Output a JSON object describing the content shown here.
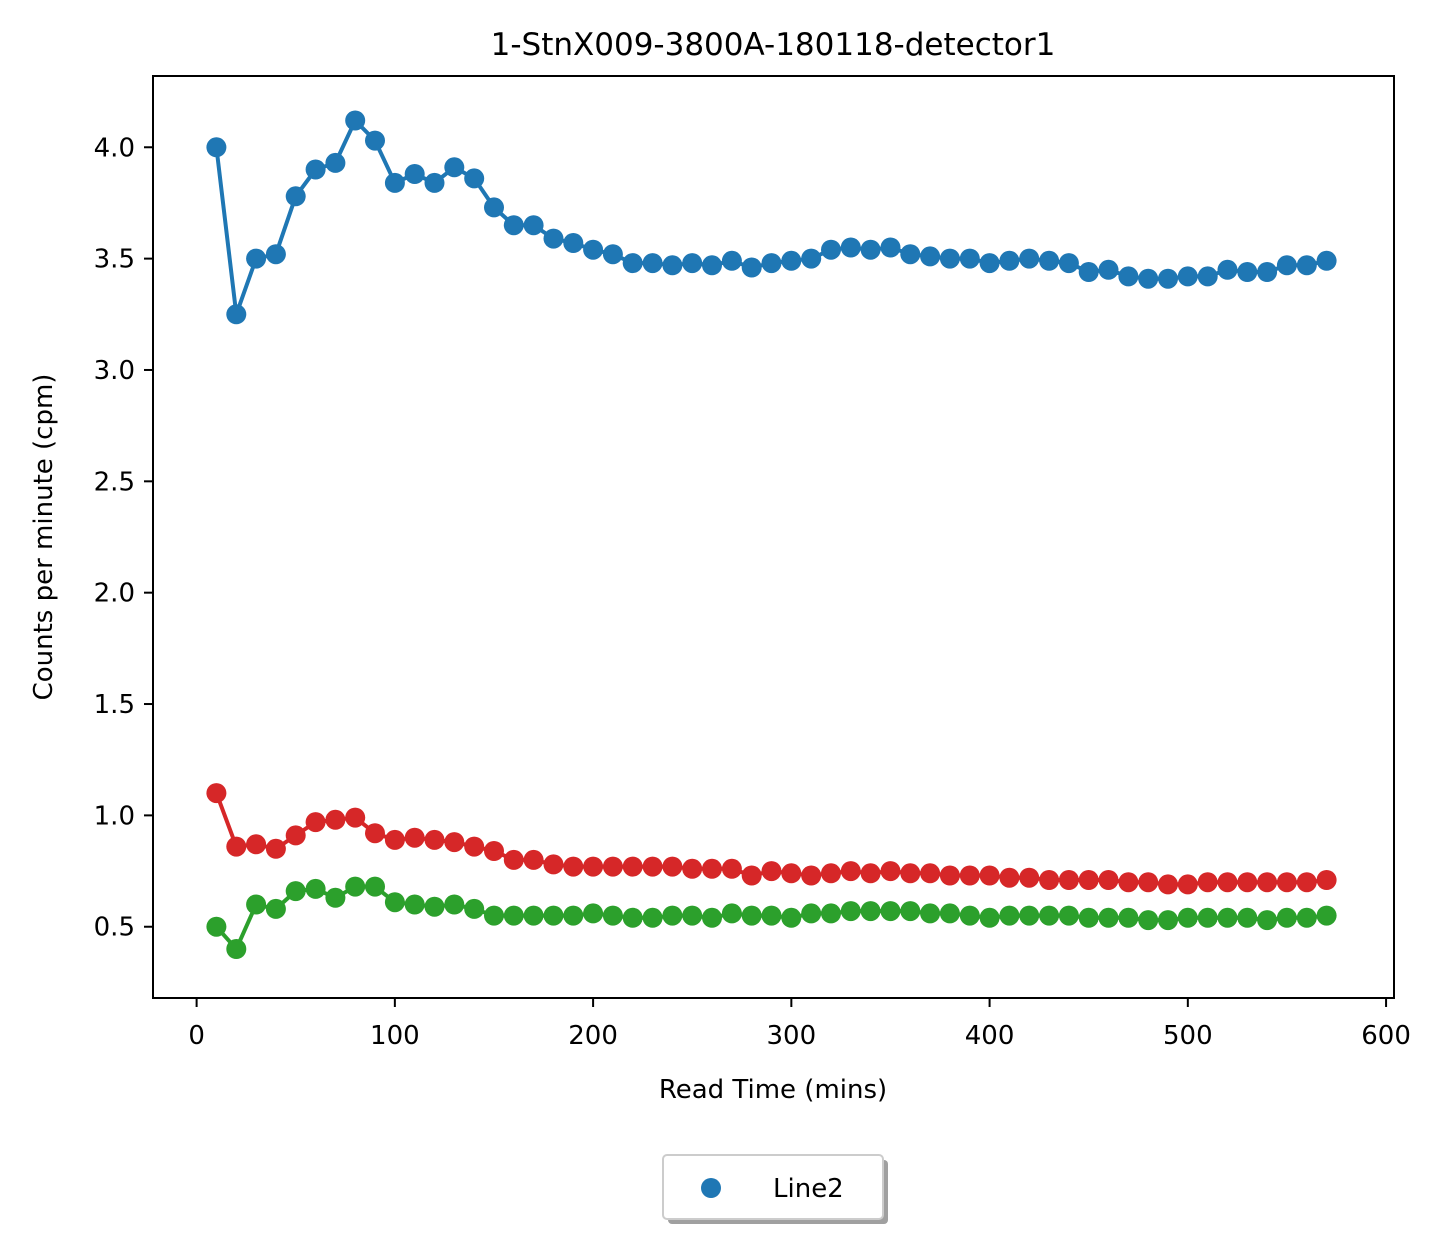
{
  "chart_data": {
    "type": "line",
    "title": "1-StnX009-3800A-180118-detector1",
    "xlabel": "Read Time (mins)",
    "ylabel": "Counts per minute (cpm)",
    "xlim": [
      -22,
      604
    ],
    "ylim": [
      0.18,
      4.32
    ],
    "xticks": [
      0,
      100,
      200,
      300,
      400,
      500,
      600
    ],
    "yticks": [
      0.5,
      1.0,
      1.5,
      2.0,
      2.5,
      3.0,
      3.5,
      4.0
    ],
    "grid": false,
    "legend": {
      "placement": "bottom-center",
      "entries": [
        "Line2"
      ]
    },
    "x": [
      10,
      20,
      30,
      40,
      50,
      60,
      70,
      80,
      90,
      100,
      110,
      120,
      130,
      140,
      150,
      160,
      170,
      180,
      190,
      200,
      210,
      220,
      230,
      240,
      250,
      260,
      270,
      280,
      290,
      300,
      310,
      320,
      330,
      340,
      350,
      360,
      370,
      380,
      390,
      400,
      410,
      420,
      430,
      440,
      450,
      460,
      470,
      480,
      490,
      500,
      510,
      520,
      530,
      540,
      550,
      560,
      570
    ],
    "series": [
      {
        "color": "#1f77b4",
        "values": [
          4.0,
          3.25,
          3.5,
          3.52,
          3.78,
          3.9,
          3.93,
          4.12,
          4.03,
          3.84,
          3.88,
          3.84,
          3.91,
          3.86,
          3.73,
          3.65,
          3.65,
          3.59,
          3.57,
          3.54,
          3.52,
          3.48,
          3.48,
          3.47,
          3.48,
          3.47,
          3.49,
          3.46,
          3.48,
          3.49,
          3.5,
          3.54,
          3.55,
          3.54,
          3.55,
          3.52,
          3.51,
          3.5,
          3.5,
          3.48,
          3.49,
          3.5,
          3.49,
          3.48,
          3.44,
          3.45,
          3.42,
          3.41,
          3.41,
          3.42,
          3.42,
          3.45,
          3.44,
          3.44,
          3.47,
          3.47,
          3.49
        ]
      },
      {
        "color": "#d62728",
        "values": [
          1.1,
          0.86,
          0.87,
          0.85,
          0.91,
          0.97,
          0.98,
          0.99,
          0.92,
          0.89,
          0.9,
          0.89,
          0.88,
          0.86,
          0.84,
          0.8,
          0.8,
          0.78,
          0.77,
          0.77,
          0.77,
          0.77,
          0.77,
          0.77,
          0.76,
          0.76,
          0.76,
          0.73,
          0.75,
          0.74,
          0.73,
          0.74,
          0.75,
          0.74,
          0.75,
          0.74,
          0.74,
          0.73,
          0.73,
          0.73,
          0.72,
          0.72,
          0.71,
          0.71,
          0.71,
          0.71,
          0.7,
          0.7,
          0.69,
          0.69,
          0.7,
          0.7,
          0.7,
          0.7,
          0.7,
          0.7,
          0.71
        ]
      },
      {
        "color": "#2ca02c",
        "values": [
          0.5,
          0.4,
          0.6,
          0.58,
          0.66,
          0.67,
          0.63,
          0.68,
          0.68,
          0.61,
          0.6,
          0.59,
          0.6,
          0.58,
          0.55,
          0.55,
          0.55,
          0.55,
          0.55,
          0.56,
          0.55,
          0.54,
          0.54,
          0.55,
          0.55,
          0.54,
          0.56,
          0.55,
          0.55,
          0.54,
          0.56,
          0.56,
          0.57,
          0.57,
          0.57,
          0.57,
          0.56,
          0.56,
          0.55,
          0.54,
          0.55,
          0.55,
          0.55,
          0.55,
          0.54,
          0.54,
          0.54,
          0.53,
          0.53,
          0.54,
          0.54,
          0.54,
          0.54,
          0.53,
          0.54,
          0.54,
          0.55
        ]
      }
    ]
  }
}
